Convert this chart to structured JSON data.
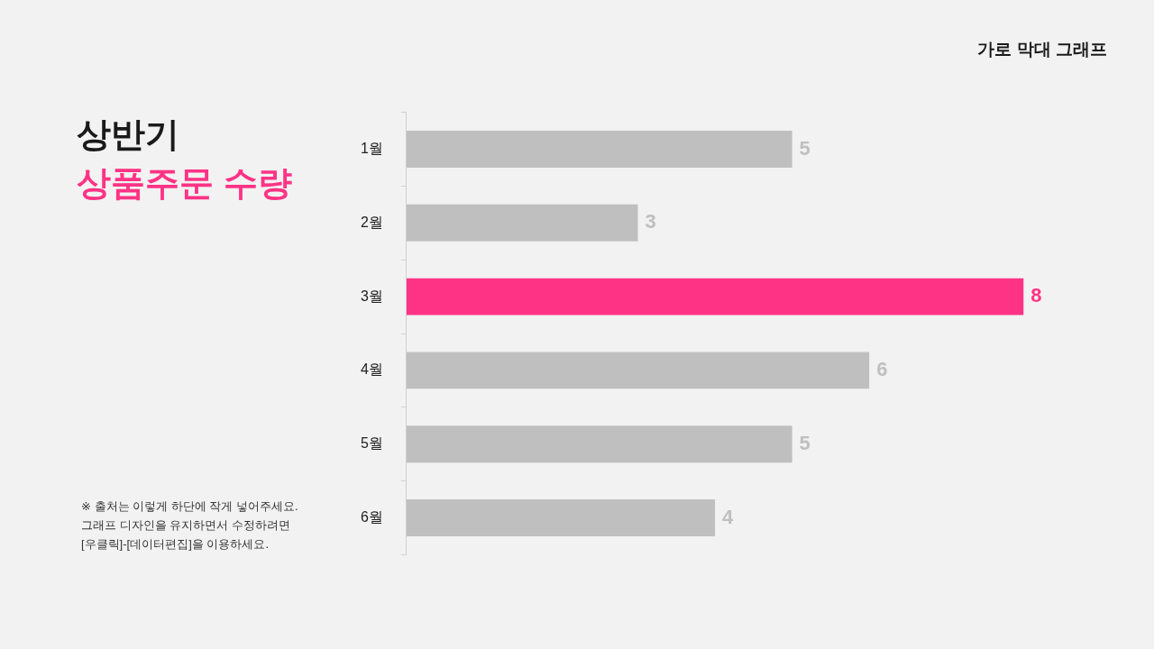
{
  "chart_data": {
    "type": "bar",
    "orientation": "horizontal",
    "title": "상반기\n상품주문 수량",
    "subtitle": "가로 막대 그래프",
    "categories": [
      "1월",
      "2월",
      "3월",
      "4월",
      "5월",
      "6월"
    ],
    "values": [
      5,
      3,
      8,
      6,
      5,
      4
    ],
    "colors": [
      "#bfbfbf",
      "#bfbfbf",
      "#ff3385",
      "#bfbfbf",
      "#bfbfbf",
      "#bfbfbf"
    ],
    "data_labels": true,
    "legend": false,
    "annotations": [
      "※ 출처는 이렇게 하단에 작게 넣어주세요.",
      "그래프 디자인을 유지하면서 수정하려면",
      "[우클릭]-[데이터편집]을 이용하세요."
    ]
  }
}
